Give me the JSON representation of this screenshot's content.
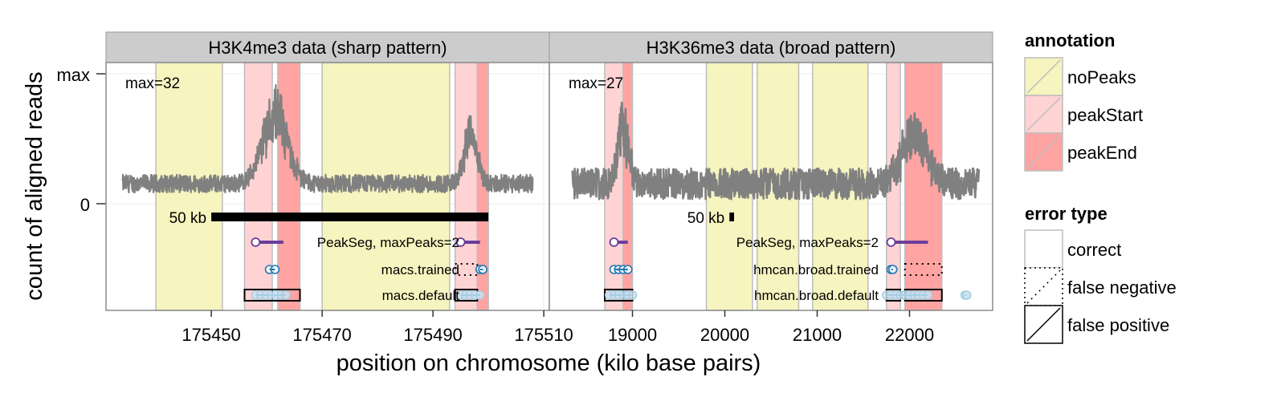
{
  "chart_data": {
    "type": "line",
    "title": "",
    "xlabel": "position on chromosome (kilo base pairs)",
    "ylabel": "count of aligned reads",
    "y_ticks": [
      "0",
      "max"
    ],
    "scale_bar_label": "50 kb",
    "panels": [
      {
        "title": "H3K4me3 data (sharp pattern)",
        "max_label": "max=32",
        "max": 32,
        "xlim": [
          175431,
          175511
        ],
        "x_ticks": [
          175450,
          175470,
          175490,
          175510
        ],
        "x_tick_labels": [
          "175450",
          "175470",
          "175490",
          "175510"
        ],
        "signal_range": [
          175434,
          175508
        ],
        "baseline": 4.5,
        "noise_amplitude": 2.2,
        "peaks": [
          {
            "center": 175461.5,
            "height": 18,
            "width": 2.2
          },
          {
            "center": 175496.8,
            "height": 13,
            "width": 1.1
          }
        ],
        "annotations": [
          {
            "type": "noPeaks",
            "start": 175440,
            "end": 175452
          },
          {
            "type": "peakStart",
            "start": 175456,
            "end": 175461
          },
          {
            "type": "peakEnd",
            "start": 175462,
            "end": 175466
          },
          {
            "type": "noPeaks",
            "start": 175470,
            "end": 175493
          },
          {
            "type": "peakStart",
            "start": 175494,
            "end": 175498
          },
          {
            "type": "peakEnd",
            "start": 175498,
            "end": 175500
          }
        ],
        "scale_bar": {
          "start": 175450,
          "end": 175500
        },
        "models": [
          {
            "name": "PeakSeg, maxPeaks=2",
            "color": "#6a3d9a",
            "peaks": [
              [
                175458,
                175463
              ],
              [
                175495,
                175498.5
              ]
            ],
            "errors": []
          },
          {
            "name": "macs.trained",
            "color": "#1f78b4",
            "peaks": [
              [
                175460.5,
                175461.5
              ],
              [
                175498.5,
                175499
              ]
            ],
            "errors": [
              {
                "type": "false negative",
                "start": 175494,
                "end": 175498
              }
            ]
          },
          {
            "name": "macs.default",
            "color": "#a6cee3",
            "peaks": [
              [
                175458,
                175463.5
              ],
              [
                175495,
                175498.5
              ]
            ],
            "errors": [
              {
                "type": "false positive",
                "start": 175456,
                "end": 175461
              },
              {
                "type": "false positive",
                "start": 175461,
                "end": 175466
              },
              {
                "type": "false positive",
                "start": 175494,
                "end": 175498
              }
            ]
          }
        ]
      },
      {
        "title": "H3K36me3 data (broad pattern)",
        "max_label": "max=27",
        "max": 27,
        "xlim": [
          18100,
          22900
        ],
        "x_ticks": [
          19000,
          20000,
          21000,
          22000
        ],
        "x_tick_labels": [
          "19000",
          "20000",
          "21000",
          "22000"
        ],
        "signal_range": [
          18350,
          22750
        ],
        "baseline": 3.5,
        "noise_amplitude": 3.2,
        "peaks": [
          {
            "center": 18900,
            "height": 13,
            "width": 55
          },
          {
            "center": 22050,
            "height": 11,
            "width": 130
          }
        ],
        "annotations": [
          {
            "type": "peakStart",
            "start": 18700,
            "end": 18900
          },
          {
            "type": "peakEnd",
            "start": 18900,
            "end": 19000
          },
          {
            "type": "noPeaks",
            "start": 19800,
            "end": 20300
          },
          {
            "type": "noPeaks",
            "start": 20350,
            "end": 20800
          },
          {
            "type": "noPeaks",
            "start": 20950,
            "end": 21550
          },
          {
            "type": "peakStart",
            "start": 21750,
            "end": 21900
          },
          {
            "type": "peakEnd",
            "start": 21950,
            "end": 22350
          }
        ],
        "scale_bar": {
          "start": 20050,
          "end": 20100
        },
        "models": [
          {
            "name": "PeakSeg, maxPeaks=2",
            "color": "#6a3d9a",
            "peaks": [
              [
                18800,
                18950
              ],
              [
                21800,
                22200
              ]
            ],
            "errors": []
          },
          {
            "name": "hmcan.broad.trained",
            "color": "#1f78b4",
            "peaks": [
              [
                18800,
                18950
              ],
              [
                21800,
                21820
              ]
            ],
            "errors": [
              {
                "type": "false negative",
                "start": 21950,
                "end": 22350
              }
            ]
          },
          {
            "name": "hmcan.broad.default",
            "color": "#a6cee3",
            "peaks": [
              [
                18750,
                19000
              ],
              [
                21750,
                22200
              ],
              [
                22600,
                22620
              ]
            ],
            "errors": [
              {
                "type": "false positive",
                "start": 18700,
                "end": 18900
              },
              {
                "type": "false positive",
                "start": 18900,
                "end": 19000
              },
              {
                "type": "false positive",
                "start": 21750,
                "end": 21900
              },
              {
                "type": "false positive",
                "start": 21950,
                "end": 22350
              }
            ]
          }
        ]
      }
    ],
    "legends": [
      {
        "title": "annotation",
        "items": [
          {
            "label": "noPeaks",
            "color": "#f6f4bf"
          },
          {
            "label": "peakStart",
            "color": "#ffd3d3"
          },
          {
            "label": "peakEnd",
            "color": "#ffa3a3"
          }
        ]
      },
      {
        "title": "error type",
        "items": [
          {
            "label": "correct",
            "pattern": "none"
          },
          {
            "label": "false negative",
            "pattern": "dotted"
          },
          {
            "label": "false positive",
            "pattern": "solid"
          }
        ]
      }
    ],
    "legend_position": "right"
  }
}
